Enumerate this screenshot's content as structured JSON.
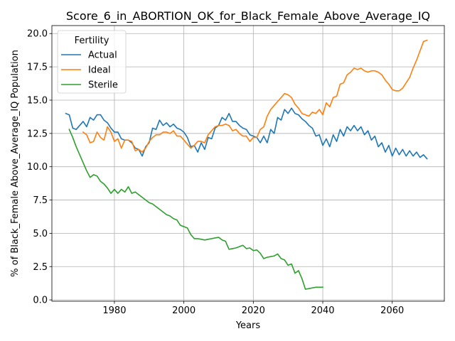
{
  "chart_data": {
    "type": "line",
    "title": "Score_6_in_ABORTION_OK_for_Black_Female_Above_Average_IQ",
    "xlabel": "Years",
    "ylabel": "% of Black_Female Above_Average_IQ Population",
    "xlim": [
      1962,
      2075
    ],
    "ylim": [
      -0.1,
      20.6
    ],
    "x_ticks": [
      {
        "value": 1980,
        "label": "1980"
      },
      {
        "value": 2000,
        "label": "2000"
      },
      {
        "value": 2020,
        "label": "2020"
      },
      {
        "value": 2040,
        "label": "2040"
      },
      {
        "value": 2060,
        "label": "2060"
      }
    ],
    "y_ticks": [
      {
        "value": 0,
        "label": "0.0"
      },
      {
        "value": 2.5,
        "label": "2.5"
      },
      {
        "value": 5,
        "label": "5.0"
      },
      {
        "value": 7.5,
        "label": "7.5"
      },
      {
        "value": 10,
        "label": "10.0"
      },
      {
        "value": 12.5,
        "label": "12.5"
      },
      {
        "value": 15,
        "label": "15.0"
      },
      {
        "value": 17.5,
        "label": "17.5"
      },
      {
        "value": 20,
        "label": "20.0"
      }
    ],
    "grid": true,
    "legend": {
      "title": "Fertility",
      "position": "top-left"
    },
    "series": [
      {
        "name": "Actual",
        "color": "#1f77b4",
        "x": [
          1966,
          1967,
          1968,
          1969,
          1970,
          1971,
          1972,
          1973,
          1974,
          1975,
          1976,
          1977,
          1978,
          1979,
          1980,
          1981,
          1982,
          1983,
          1984,
          1985,
          1986,
          1987,
          1988,
          1989,
          1990,
          1991,
          1992,
          1993,
          1994,
          1995,
          1996,
          1997,
          1998,
          1999,
          2000,
          2001,
          2002,
          2003,
          2004,
          2005,
          2006,
          2007,
          2008,
          2009,
          2010,
          2011,
          2012,
          2013,
          2014,
          2015,
          2016,
          2017,
          2018,
          2019,
          2020,
          2021,
          2022,
          2023,
          2024,
          2025,
          2026,
          2027,
          2028,
          2029,
          2030,
          2031,
          2032,
          2033,
          2034,
          2035,
          2036,
          2037,
          2038,
          2039,
          2040,
          2041,
          2042,
          2043,
          2044,
          2045,
          2046,
          2047,
          2048,
          2049,
          2050,
          2051,
          2052,
          2053,
          2054,
          2055,
          2056,
          2057,
          2058,
          2059,
          2060,
          2061,
          2062,
          2063,
          2064,
          2065,
          2066,
          2067,
          2068,
          2069,
          2070
        ],
        "values": [
          14.0,
          13.9,
          12.9,
          12.8,
          13.1,
          13.4,
          13.0,
          13.7,
          13.5,
          13.9,
          13.9,
          13.5,
          13.3,
          12.9,
          12.6,
          12.6,
          12.1,
          12.0,
          12.0,
          11.8,
          11.4,
          11.3,
          10.8,
          11.5,
          11.8,
          12.9,
          12.8,
          13.5,
          13.1,
          13.3,
          13.0,
          13.2,
          12.9,
          12.8,
          12.6,
          12.2,
          11.5,
          11.6,
          11.1,
          11.8,
          11.3,
          12.2,
          12.1,
          12.9,
          13.1,
          13.7,
          13.5,
          14.0,
          13.4,
          13.4,
          13.1,
          12.9,
          12.8,
          12.4,
          12.3,
          12.2,
          11.8,
          12.3,
          11.8,
          12.8,
          12.5,
          13.7,
          13.5,
          14.3,
          14.0,
          14.4,
          14.0,
          13.9,
          13.6,
          13.4,
          13.1,
          12.9,
          12.3,
          12.4,
          11.6,
          12.1,
          11.5,
          12.4,
          11.9,
          12.8,
          12.3,
          13.0,
          12.7,
          13.1,
          12.7,
          13.0,
          12.4,
          12.7,
          12.0,
          12.3,
          11.5,
          11.8,
          11.1,
          11.6,
          10.8,
          11.4,
          10.9,
          11.3,
          10.8,
          11.2,
          10.8,
          11.1,
          10.7,
          10.9,
          10.6
        ]
      },
      {
        "name": "Ideal",
        "color": "#ff7f0e",
        "x": [
          1971,
          1972,
          1973,
          1974,
          1975,
          1976,
          1977,
          1978,
          1979,
          1980,
          1981,
          1982,
          1983,
          1984,
          1985,
          1986,
          1987,
          1988,
          1989,
          1990,
          1991,
          1992,
          1993,
          1994,
          1995,
          1996,
          1997,
          1998,
          1999,
          2000,
          2001,
          2002,
          2003,
          2004,
          2005,
          2006,
          2007,
          2008,
          2009,
          2010,
          2011,
          2012,
          2013,
          2014,
          2015,
          2016,
          2017,
          2018,
          2019,
          2020,
          2021,
          2022,
          2023,
          2024,
          2025,
          2026,
          2027,
          2028,
          2029,
          2030,
          2031,
          2032,
          2033,
          2034,
          2035,
          2036,
          2037,
          2038,
          2039,
          2040,
          2041,
          2042,
          2043,
          2044,
          2045,
          2046,
          2047,
          2048,
          2049,
          2050,
          2051,
          2052,
          2053,
          2054,
          2055,
          2056,
          2057,
          2058,
          2059,
          2060,
          2061,
          2062,
          2063,
          2064,
          2065,
          2066,
          2067,
          2068,
          2069,
          2070
        ],
        "values": [
          12.6,
          12.4,
          11.8,
          11.9,
          12.6,
          12.2,
          12.0,
          13.0,
          12.6,
          11.9,
          12.1,
          11.4,
          12.0,
          12.0,
          11.9,
          11.2,
          11.3,
          11.1,
          11.4,
          11.9,
          12.2,
          12.4,
          12.4,
          12.6,
          12.6,
          12.5,
          12.7,
          12.3,
          12.3,
          12.0,
          11.7,
          11.4,
          11.6,
          11.9,
          11.9,
          11.8,
          12.4,
          12.7,
          13.0,
          13.1,
          13.1,
          13.2,
          13.1,
          12.7,
          12.8,
          12.5,
          12.3,
          12.3,
          11.9,
          12.2,
          12.2,
          12.8,
          13.0,
          13.8,
          14.3,
          14.6,
          14.9,
          15.2,
          15.5,
          15.4,
          15.2,
          14.7,
          14.4,
          14.0,
          13.9,
          13.8,
          14.1,
          14.0,
          14.3,
          13.9,
          14.8,
          14.5,
          15.2,
          15.3,
          16.2,
          16.3,
          16.9,
          17.1,
          17.4,
          17.3,
          17.4,
          17.2,
          17.1,
          17.2,
          17.2,
          17.1,
          16.9,
          16.5,
          16.2,
          15.8,
          15.7,
          15.7,
          15.9,
          16.3,
          16.7,
          17.4,
          18.0,
          18.7,
          19.4,
          19.5
        ]
      },
      {
        "name": "Sterile",
        "color": "#2ca02c",
        "x": [
          1967,
          1968,
          1969,
          1970,
          1971,
          1972,
          1973,
          1974,
          1975,
          1976,
          1977,
          1978,
          1979,
          1980,
          1981,
          1982,
          1983,
          1984,
          1985,
          1986,
          1987,
          1988,
          1989,
          1990,
          1991,
          1992,
          1993,
          1994,
          1995,
          1996,
          1997,
          1998,
          1999,
          2000,
          2001,
          2002,
          2003,
          2004,
          2005,
          2006,
          2007,
          2008,
          2009,
          2010,
          2011,
          2012,
          2013,
          2014,
          2015,
          2016,
          2017,
          2018,
          2019,
          2020,
          2021,
          2022,
          2023,
          2024,
          2025,
          2026,
          2027,
          2028,
          2029,
          2030,
          2031,
          2032,
          2033,
          2034,
          2035,
          2036,
          2037,
          2038,
          2039,
          2040
        ],
        "values": [
          12.8,
          12.2,
          11.5,
          10.9,
          10.3,
          9.7,
          9.2,
          9.4,
          9.3,
          8.9,
          8.7,
          8.4,
          8.0,
          8.3,
          8.0,
          8.3,
          8.1,
          8.5,
          8.0,
          8.1,
          7.9,
          7.7,
          7.5,
          7.3,
          7.2,
          7.0,
          6.8,
          6.6,
          6.4,
          6.3,
          6.1,
          6.0,
          5.6,
          5.5,
          5.4,
          4.9,
          4.6,
          4.6,
          4.55,
          4.5,
          4.55,
          4.6,
          4.65,
          4.7,
          4.5,
          4.4,
          3.8,
          3.85,
          3.9,
          4.0,
          4.1,
          3.85,
          3.9,
          3.7,
          3.75,
          3.5,
          3.1,
          3.2,
          3.25,
          3.3,
          3.45,
          3.1,
          3.0,
          2.6,
          2.7,
          2.0,
          2.2,
          1.6,
          0.8,
          0.85,
          0.9,
          0.95,
          0.95,
          0.95
        ]
      }
    ]
  }
}
